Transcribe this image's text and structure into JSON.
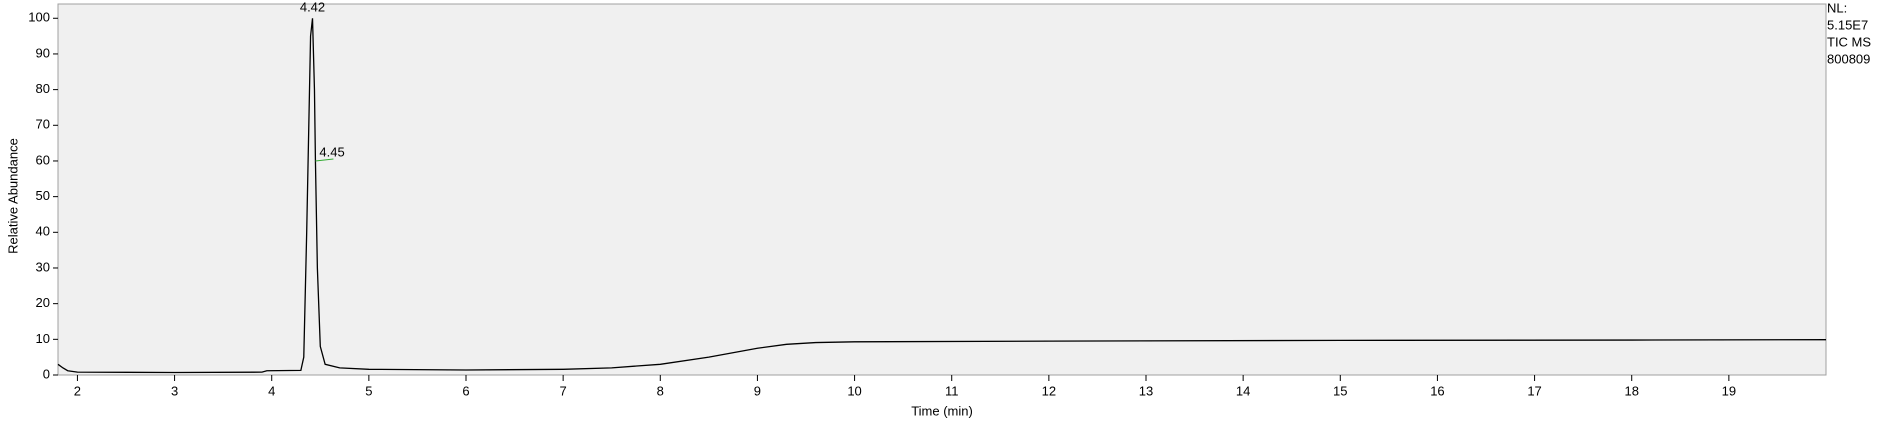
{
  "chart_data": {
    "type": "line",
    "x_label": "Time (min)",
    "y_label": "Relative Abundance",
    "info": [
      "NL:",
      "5.15E7",
      "TIC  MS",
      "800809"
    ],
    "x": [
      1.8,
      1.85,
      1.9,
      2.0,
      3.0,
      3.9,
      3.95,
      4.3,
      4.33,
      4.36,
      4.4,
      4.42,
      4.44,
      4.45,
      4.47,
      4.5,
      4.55,
      4.7,
      5.0,
      6.0,
      7.0,
      7.5,
      8.0,
      8.5,
      9.0,
      9.3,
      9.6,
      10.0,
      12.0,
      15.0,
      18.0,
      20.0
    ],
    "series": [
      {
        "color": "#000000",
        "values": [
          3,
          2,
          1.2,
          0.8,
          0.7,
          0.8,
          1.2,
          1.3,
          5,
          40,
          95,
          100,
          80,
          60,
          30,
          8,
          3,
          2,
          1.6,
          1.4,
          1.6,
          2,
          3,
          5,
          7.5,
          8.6,
          9.1,
          9.3,
          9.5,
          9.7,
          9.8,
          9.9
        ]
      }
    ],
    "annotations": [
      {
        "x": 4.42,
        "y": 100,
        "text": "4.42"
      },
      {
        "x": 4.45,
        "y": 60,
        "text": "4.45"
      }
    ],
    "xlim": [
      1.8,
      20
    ],
    "ylim": [
      0,
      104
    ],
    "xticks": [
      2,
      3,
      4,
      5,
      6,
      7,
      8,
      9,
      10,
      11,
      12,
      13,
      14,
      15,
      16,
      17,
      18,
      19
    ],
    "yticks": [
      0,
      10,
      20,
      30,
      40,
      50,
      60,
      70,
      80,
      90,
      100
    ]
  }
}
